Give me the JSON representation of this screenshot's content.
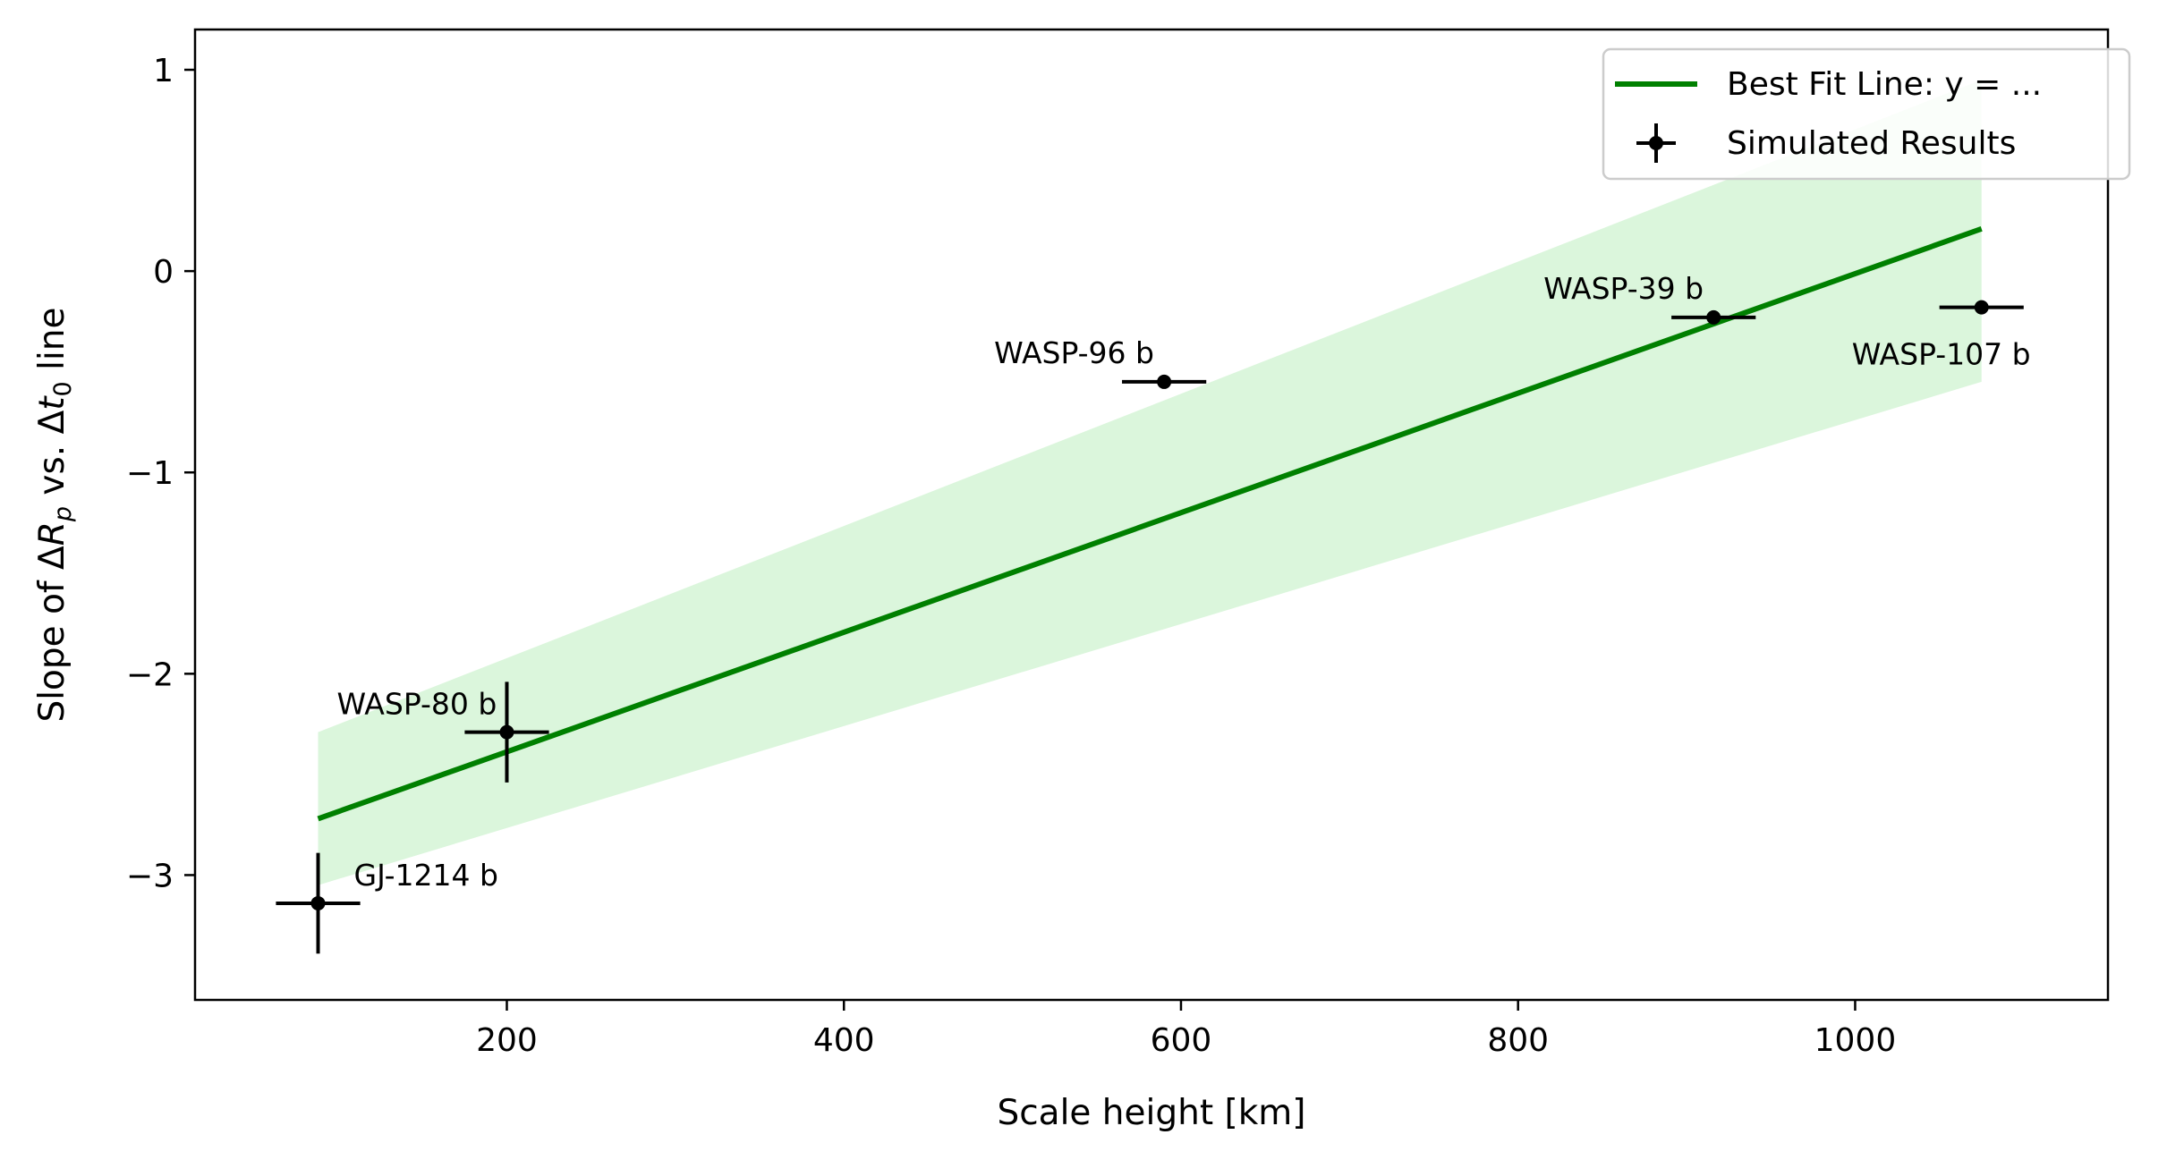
{
  "chart_data": {
    "type": "scatter",
    "xlabel": "Scale height [km]",
    "ylabel": {
      "prefix": "Slope of Δ",
      "var1": "R",
      "sub1": "p",
      "mid": " vs. Δ",
      "var2": "t",
      "sub2": "0",
      "suffix": " line"
    },
    "xlim": [
      15,
      1150
    ],
    "ylim": [
      -3.62,
      1.2
    ],
    "xticks": [
      200,
      400,
      600,
      800,
      1000
    ],
    "yticks": [
      1,
      0,
      -1,
      -2,
      -3
    ],
    "ytick_labels": [
      "1",
      "0",
      "−1",
      "−2",
      "−3"
    ],
    "grid": false,
    "legend_position": "upper right",
    "colors": {
      "fit_line": "#008000",
      "band": "#dbf6dc",
      "points": "#000000"
    },
    "series": [
      {
        "name": "Best Fit Line: y = ...",
        "kind": "line",
        "x": [
          88,
          1075
        ],
        "y": [
          -2.72,
          0.21
        ]
      },
      {
        "name": "Simulated Results",
        "kind": "errorbar",
        "points": [
          {
            "label": "GJ-1214 b",
            "x": 88,
            "y": -3.14,
            "xerr": 25,
            "yerr": 0.25
          },
          {
            "label": "WASP-80 b",
            "x": 200,
            "y": -2.29,
            "xerr": 25,
            "yerr": 0.25
          },
          {
            "label": "WASP-96 b",
            "x": 590,
            "y": -0.55,
            "xerr": 25,
            "yerr": 0.0
          },
          {
            "label": "WASP-39 b",
            "x": 916,
            "y": -0.23,
            "xerr": 25,
            "yerr": 0.0
          },
          {
            "label": "WASP-107 b",
            "x": 1075,
            "y": -0.18,
            "xerr": 25,
            "yerr": 0.0
          }
        ]
      }
    ],
    "confidence_band": {
      "x": [
        88,
        1075
      ],
      "upper": [
        -2.29,
        0.95
      ],
      "lower": [
        -3.05,
        -0.55
      ]
    }
  }
}
